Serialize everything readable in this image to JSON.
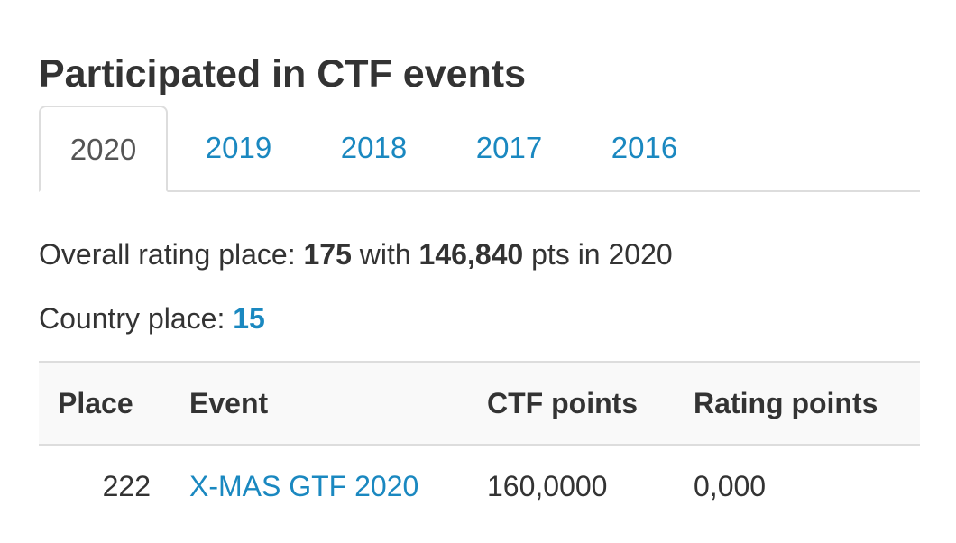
{
  "title": "Participated in CTF events",
  "tabs": [
    {
      "label": "2020",
      "active": true
    },
    {
      "label": "2019",
      "active": false
    },
    {
      "label": "2018",
      "active": false
    },
    {
      "label": "2017",
      "active": false
    },
    {
      "label": "2016",
      "active": false
    }
  ],
  "overall": {
    "prefix": "Overall rating place: ",
    "place": "175",
    "with_text": " with ",
    "points": "146,840",
    "suffix": " pts in 2020"
  },
  "country": {
    "prefix": "Country place: ",
    "place": "15"
  },
  "table": {
    "headers": {
      "place": "Place",
      "event": "Event",
      "ctf_points": "CTF points",
      "rating_points": "Rating points"
    },
    "rows": [
      {
        "place": "222",
        "event": "X-MAS GTF 2020",
        "ctf_points": "160,0000",
        "rating_points": "0,000"
      }
    ]
  },
  "colors": {
    "link": "#1a88c0",
    "text": "#333333",
    "border": "#dddddd",
    "header_bg": "#f9f9f9"
  }
}
